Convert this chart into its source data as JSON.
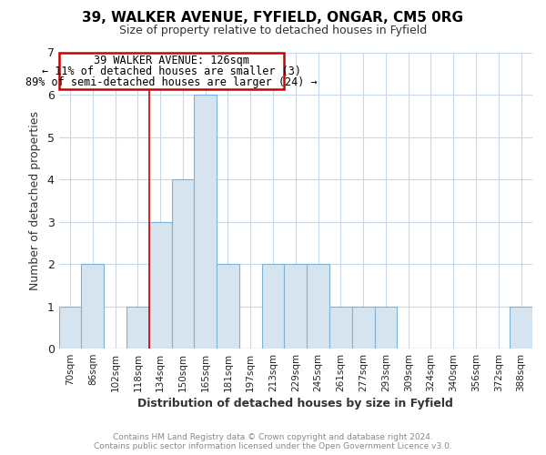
{
  "title": "39, WALKER AVENUE, FYFIELD, ONGAR, CM5 0RG",
  "subtitle": "Size of property relative to detached houses in Fyfield",
  "xlabel": "Distribution of detached houses by size in Fyfield",
  "ylabel": "Number of detached properties",
  "bar_labels": [
    "70sqm",
    "86sqm",
    "102sqm",
    "118sqm",
    "134sqm",
    "150sqm",
    "165sqm",
    "181sqm",
    "197sqm",
    "213sqm",
    "229sqm",
    "245sqm",
    "261sqm",
    "277sqm",
    "293sqm",
    "309sqm",
    "324sqm",
    "340sqm",
    "356sqm",
    "372sqm",
    "388sqm"
  ],
  "bar_heights": [
    1,
    2,
    0,
    1,
    3,
    4,
    6,
    2,
    0,
    2,
    2,
    2,
    1,
    1,
    1,
    0,
    0,
    0,
    0,
    0,
    1
  ],
  "bar_face_color": "#d6e4f0",
  "bar_edge_color": "#7fb3d3",
  "ylim": [
    0,
    7
  ],
  "yticks": [
    0,
    1,
    2,
    3,
    4,
    5,
    6,
    7
  ],
  "annotation_text_line1": "39 WALKER AVENUE: 126sqm",
  "annotation_text_line2": "← 11% of detached houses are smaller (3)",
  "annotation_text_line3": "89% of semi-detached houses are larger (24) →",
  "annotation_box_color": "#ffffff",
  "annotation_box_edge_color": "#cc0000",
  "vertical_line_x": 3.5,
  "footer_line1": "Contains HM Land Registry data © Crown copyright and database right 2024.",
  "footer_line2": "Contains public sector information licensed under the Open Government Licence v3.0.",
  "background_color": "#ffffff",
  "grid_color": "#c8d8e8",
  "title_fontsize": 11,
  "subtitle_fontsize": 9
}
